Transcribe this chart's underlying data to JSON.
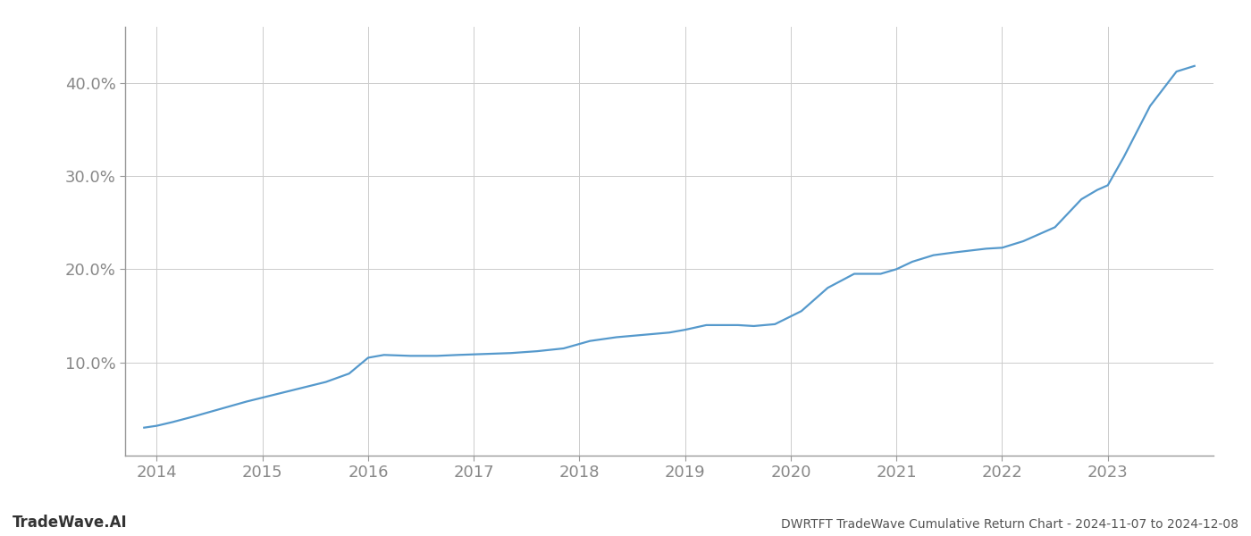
{
  "title": "DWRTFT TradeWave Cumulative Return Chart - 2024-11-07 to 2024-12-08",
  "watermark": "TradeWave.AI",
  "line_color": "#5599cc",
  "background_color": "#ffffff",
  "grid_color": "#cccccc",
  "spine_color": "#999999",
  "x_values": [
    2013.88,
    2014.0,
    2014.15,
    2014.35,
    2014.6,
    2014.85,
    2015.1,
    2015.35,
    2015.6,
    2015.82,
    2016.0,
    2016.15,
    2016.4,
    2016.65,
    2016.85,
    2017.1,
    2017.35,
    2017.6,
    2017.85,
    2018.1,
    2018.35,
    2018.65,
    2018.85,
    2019.0,
    2019.2,
    2019.5,
    2019.65,
    2019.85,
    2020.1,
    2020.35,
    2020.6,
    2020.85,
    2021.0,
    2021.15,
    2021.35,
    2021.55,
    2021.7,
    2021.85,
    2022.0,
    2022.2,
    2022.5,
    2022.75,
    2022.9,
    2023.0,
    2023.15,
    2023.4,
    2023.65,
    2023.82
  ],
  "y_values": [
    3.0,
    3.2,
    3.6,
    4.2,
    5.0,
    5.8,
    6.5,
    7.2,
    7.9,
    8.8,
    10.5,
    10.8,
    10.7,
    10.7,
    10.8,
    10.9,
    11.0,
    11.2,
    11.5,
    12.3,
    12.7,
    13.0,
    13.2,
    13.5,
    14.0,
    14.0,
    13.9,
    14.1,
    15.5,
    18.0,
    19.5,
    19.5,
    20.0,
    20.8,
    21.5,
    21.8,
    22.0,
    22.2,
    22.3,
    23.0,
    24.5,
    27.5,
    28.5,
    29.0,
    32.0,
    37.5,
    41.2,
    41.8
  ],
  "xlim": [
    2013.7,
    2024.0
  ],
  "ylim": [
    0,
    46
  ],
  "yticks": [
    10.0,
    20.0,
    30.0,
    40.0
  ],
  "xticks": [
    2014,
    2015,
    2016,
    2017,
    2018,
    2019,
    2020,
    2021,
    2022,
    2023
  ],
  "title_fontsize": 10,
  "watermark_fontsize": 12,
  "tick_fontsize": 13,
  "line_width": 1.6
}
